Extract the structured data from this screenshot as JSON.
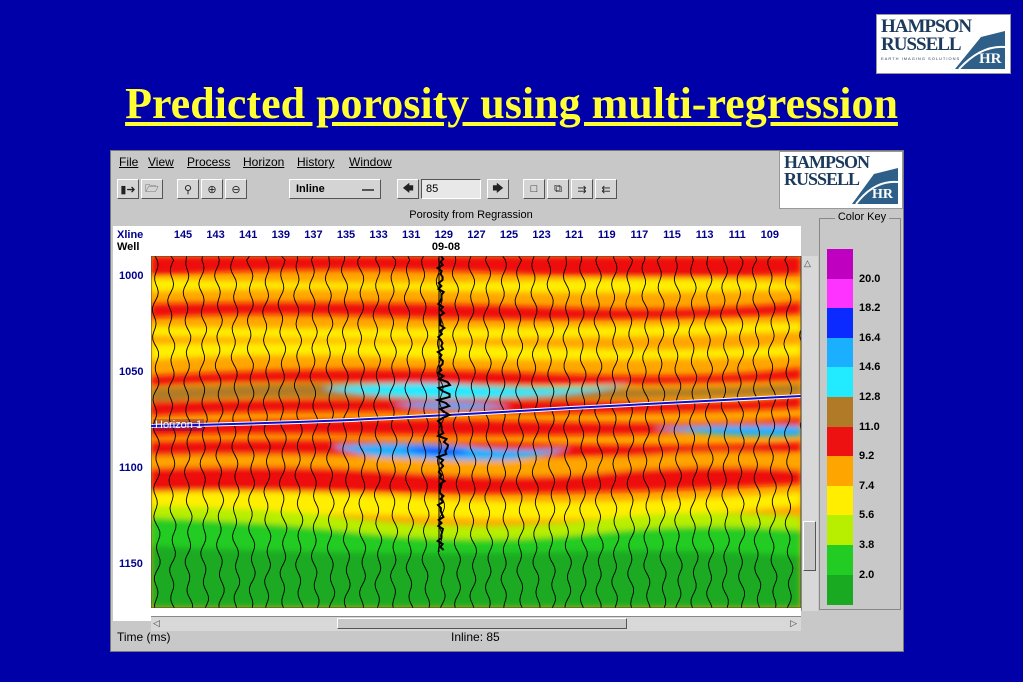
{
  "slide": {
    "title": "Predicted porosity using multi-regression"
  },
  "logo": {
    "line1": "HAMPSON",
    "line2": "RUSSELL",
    "mark": "HR",
    "tagline": "EARTH IMAGING SOLUTIONS"
  },
  "window": {
    "menu": [
      "File",
      "View",
      "Process",
      "Horizon",
      "History",
      "Window"
    ],
    "toolbar": {
      "icons": [
        "open-well-icon",
        "open-folder-icon",
        "zoom-icon",
        "zoom-in-icon",
        "zoom-out-icon"
      ],
      "mode": "Inline",
      "value": "85",
      "view_icons": [
        "single-window-icon",
        "stacked-windows-icon",
        "window-right-icon",
        "window-left-icon"
      ]
    },
    "plot_title": "Porosity from Regrassion",
    "xline_label": "Xline",
    "well_label": "Well",
    "xlines": [
      "145",
      "143",
      "141",
      "139",
      "137",
      "135",
      "133",
      "131",
      "129",
      "127",
      "125",
      "123",
      "121",
      "119",
      "117",
      "115",
      "113",
      "111",
      "109"
    ],
    "well_name": "09-08",
    "times": [
      "1000",
      "1050",
      "1100",
      "1150"
    ],
    "horizon_label": "Horizon 1",
    "color_key": {
      "title": "Color Key",
      "labels": [
        "20.0",
        "18.2",
        "16.4",
        "14.6",
        "12.8",
        "11.0",
        "9.2",
        "7.4",
        "5.6",
        "3.8",
        "2.0"
      ],
      "colors": [
        "#c000c0",
        "#ff33ff",
        "#0a2aff",
        "#1ab0ff",
        "#22eaff",
        "#b07a26",
        "#ee1111",
        "#ffa500",
        "#ffee00",
        "#b8ee00",
        "#22cc22",
        "#1aaa22"
      ]
    },
    "status": {
      "time_label": "Time (ms)",
      "inline_label": "Inline: 85"
    }
  }
}
